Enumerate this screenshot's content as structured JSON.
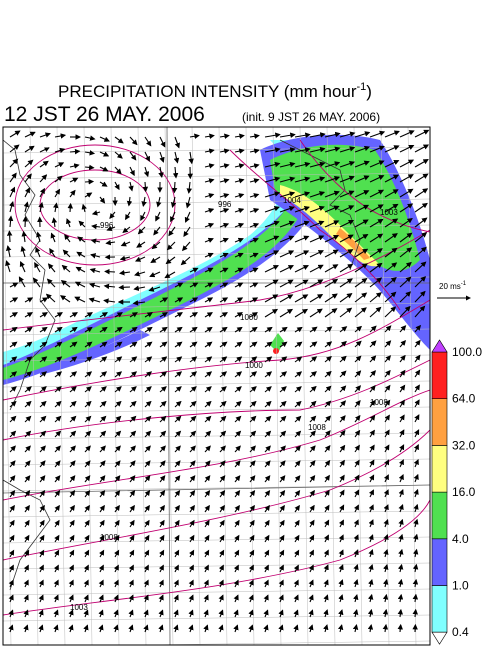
{
  "header": {
    "title": "PRECIPITATION INTENSITY (mm hour",
    "title_superscript": "-1",
    "title_close": ")",
    "valid_time": "12 JST 26 MAY. 2006",
    "init_time": "(init. 9 JST 26 MAY. 2006)"
  },
  "vector_legend": {
    "label": "20 ms",
    "superscript": "-1"
  },
  "colorbar": {
    "labels": [
      "0.4",
      "1.0",
      "4.0",
      "16.0",
      "32.0",
      "64.0",
      "100.0"
    ],
    "colors": [
      "#80ffff",
      "#6464ff",
      "#50e050",
      "#ffff80",
      "#ffa040",
      "#ff2020"
    ],
    "over_color": "#c040ff",
    "under_color": "#ffffff"
  },
  "contour_labels": [
    "996",
    "996",
    "1000",
    "1003",
    "1004",
    "1000",
    "1008",
    "1008",
    "1003",
    "1008"
  ]
}
